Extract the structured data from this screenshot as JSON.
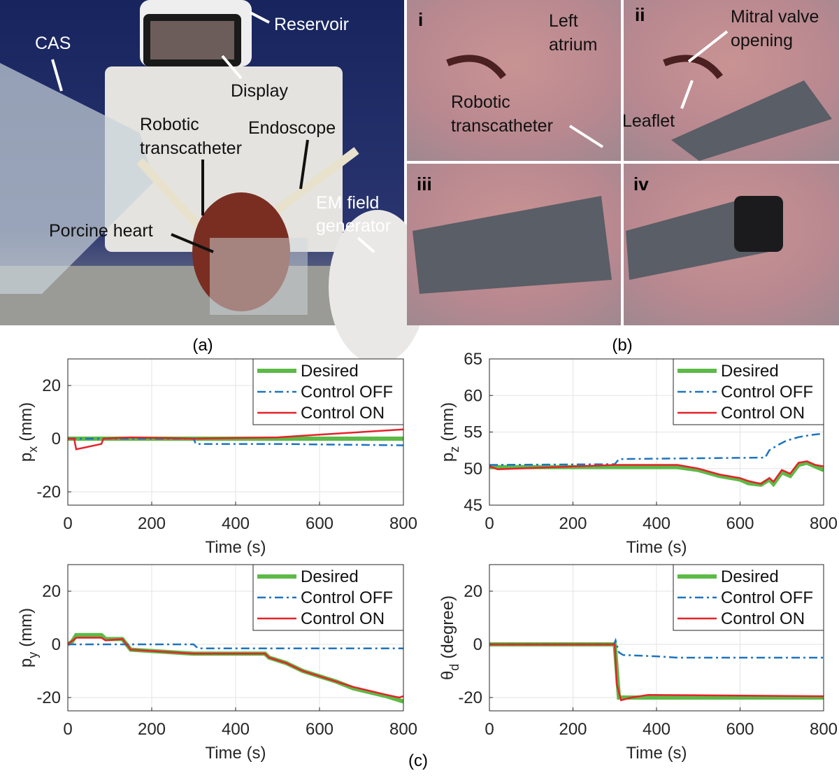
{
  "panel_a": {
    "caption": "(a)",
    "labels": {
      "reservoir": "Reservoir",
      "cas": "CAS",
      "display": "Display",
      "transcatheter": [
        "Robotic",
        "transcatheter"
      ],
      "endoscope": "Endoscope",
      "em": [
        "EM field",
        "generator"
      ],
      "heart": "Porcine heart"
    }
  },
  "panel_b": {
    "caption": "(b)",
    "subpanels": [
      "i",
      "ii",
      "iii",
      "iv"
    ],
    "labels": {
      "atrium": [
        "Left",
        "atrium"
      ],
      "transcatheter": [
        "Robotic",
        "transcatheter"
      ],
      "mitral": [
        "Mitral valve",
        "opening"
      ],
      "leaflet": "Leaflet"
    }
  },
  "panel_c": {
    "caption": "(c)"
  },
  "chart_data": [
    {
      "type": "line",
      "xlabel": "Time (s)",
      "ylabel": {
        "symbol": "p",
        "subscript": "x",
        "unit": "(mm)"
      },
      "xlim": [
        0,
        800
      ],
      "xticks": [
        0,
        200,
        400,
        600,
        800
      ],
      "ylim": [
        -25,
        30
      ],
      "yticks": [
        -20,
        0,
        20
      ],
      "grid": true,
      "legend": "upper right",
      "series": [
        {
          "name": "Desired",
          "color": "#5cba47",
          "linestyle": "solid",
          "linewidth": 6,
          "x": [
            0,
            800
          ],
          "values": [
            0,
            0
          ]
        },
        {
          "name": "Control OFF",
          "color": "#1f74bd",
          "linestyle": "dashdot",
          "linewidth": 2.5,
          "x": [
            0,
            300,
            305,
            500,
            800
          ],
          "values": [
            0,
            0,
            -2,
            -2,
            -2.5
          ]
        },
        {
          "name": "Control ON",
          "color": "#e5232a",
          "linestyle": "solid",
          "linewidth": 2.5,
          "x": [
            0,
            15,
            20,
            80,
            85,
            150,
            300,
            500,
            600,
            700,
            800
          ],
          "values": [
            0,
            0,
            -4,
            -2,
            0,
            0.5,
            0,
            0.5,
            1.5,
            2.5,
            3.5
          ]
        }
      ]
    },
    {
      "type": "line",
      "xlabel": "Time (s)",
      "ylabel": {
        "symbol": "p",
        "subscript": "z",
        "unit": "(mm)"
      },
      "xlim": [
        0,
        800
      ],
      "xticks": [
        0,
        200,
        400,
        600,
        800
      ],
      "ylim": [
        45,
        65
      ],
      "yticks": [
        45,
        50,
        55,
        60,
        65
      ],
      "grid": true,
      "legend": "upper right",
      "series": [
        {
          "name": "Desired",
          "color": "#5cba47",
          "linestyle": "solid",
          "linewidth": 6,
          "x": [
            0,
            450,
            500,
            550,
            600,
            620,
            650,
            670,
            680,
            700,
            720,
            740,
            760,
            780,
            800
          ],
          "values": [
            50.2,
            50.2,
            49.8,
            49,
            48.5,
            48,
            47.8,
            48.5,
            47.9,
            49.5,
            49,
            50.5,
            50.8,
            50.3,
            49.8
          ]
        },
        {
          "name": "Control OFF",
          "color": "#1f74bd",
          "linestyle": "dashdot",
          "linewidth": 2.5,
          "x": [
            0,
            300,
            310,
            660,
            670,
            690,
            710,
            740,
            770,
            800
          ],
          "values": [
            50.5,
            50.6,
            51.3,
            51.5,
            52.5,
            53.2,
            53.8,
            54.3,
            54.6,
            54.8
          ]
        },
        {
          "name": "Control ON",
          "color": "#e5232a",
          "linestyle": "solid",
          "linewidth": 2.5,
          "x": [
            0,
            20,
            300,
            450,
            500,
            550,
            600,
            620,
            650,
            670,
            680,
            700,
            720,
            740,
            760,
            780,
            800
          ],
          "values": [
            50.3,
            49.9,
            50.5,
            50.5,
            50,
            49.2,
            48.7,
            48.3,
            47.9,
            48.7,
            48.2,
            49.8,
            49.3,
            50.8,
            51,
            50.5,
            50.3
          ]
        }
      ]
    },
    {
      "type": "line",
      "xlabel": "Time (s)",
      "ylabel": {
        "symbol": "p",
        "subscript": "y",
        "unit": "(mm)"
      },
      "xlim": [
        0,
        800
      ],
      "xticks": [
        0,
        200,
        400,
        600,
        800
      ],
      "ylim": [
        -25,
        30
      ],
      "yticks": [
        -20,
        0,
        20
      ],
      "grid": true,
      "legend": "upper right",
      "series": [
        {
          "name": "Desired",
          "color": "#5cba47",
          "linestyle": "solid",
          "linewidth": 6,
          "x": [
            0,
            10,
            20,
            80,
            90,
            130,
            150,
            300,
            470,
            480,
            520,
            560,
            600,
            640,
            680,
            720,
            760,
            790,
            800
          ],
          "values": [
            0,
            1,
            3.5,
            3.5,
            2,
            2,
            -2,
            -3.5,
            -3.5,
            -5,
            -7,
            -10,
            -12,
            -14,
            -16.5,
            -18,
            -19.5,
            -21,
            -21.5
          ]
        },
        {
          "name": "Control OFF",
          "color": "#1f74bd",
          "linestyle": "dashdot",
          "linewidth": 2.5,
          "x": [
            0,
            300,
            310,
            800
          ],
          "values": [
            0,
            0,
            -1.5,
            -1.5
          ]
        },
        {
          "name": "Control ON",
          "color": "#e5232a",
          "linestyle": "solid",
          "linewidth": 2.5,
          "x": [
            0,
            20,
            80,
            90,
            130,
            150,
            300,
            470,
            480,
            520,
            560,
            600,
            640,
            680,
            720,
            760,
            790,
            800
          ],
          "values": [
            0,
            2.5,
            2.5,
            1.5,
            2,
            -2,
            -3.5,
            -3.5,
            -5,
            -7,
            -10,
            -12,
            -14,
            -16,
            -17.5,
            -19,
            -20,
            -19.5
          ]
        }
      ]
    },
    {
      "type": "line",
      "xlabel": "Time (s)",
      "ylabel": {
        "symbol": "θ",
        "subscript": "d",
        "unit": "(degree)"
      },
      "xlim": [
        0,
        800
      ],
      "xticks": [
        0,
        200,
        400,
        600,
        800
      ],
      "ylim": [
        -25,
        30
      ],
      "yticks": [
        -20,
        0,
        20
      ],
      "grid": true,
      "legend": "upper right",
      "series": [
        {
          "name": "Desired",
          "color": "#5cba47",
          "linestyle": "solid",
          "linewidth": 6,
          "x": [
            0,
            300,
            310,
            800
          ],
          "values": [
            0,
            0,
            -20,
            -20
          ]
        },
        {
          "name": "Control OFF",
          "color": "#1f74bd",
          "linestyle": "dashdot",
          "linewidth": 2.5,
          "x": [
            0,
            298,
            302,
            310,
            320,
            400,
            450,
            800
          ],
          "values": [
            0,
            0,
            1.5,
            -3,
            -4,
            -4.5,
            -5,
            -5
          ]
        },
        {
          "name": "Control ON",
          "color": "#e5232a",
          "linestyle": "solid",
          "linewidth": 2.5,
          "x": [
            0,
            300,
            305,
            315,
            340,
            380,
            800
          ],
          "values": [
            0,
            0,
            -15,
            -21,
            -20,
            -19,
            -19.5
          ]
        }
      ]
    }
  ]
}
